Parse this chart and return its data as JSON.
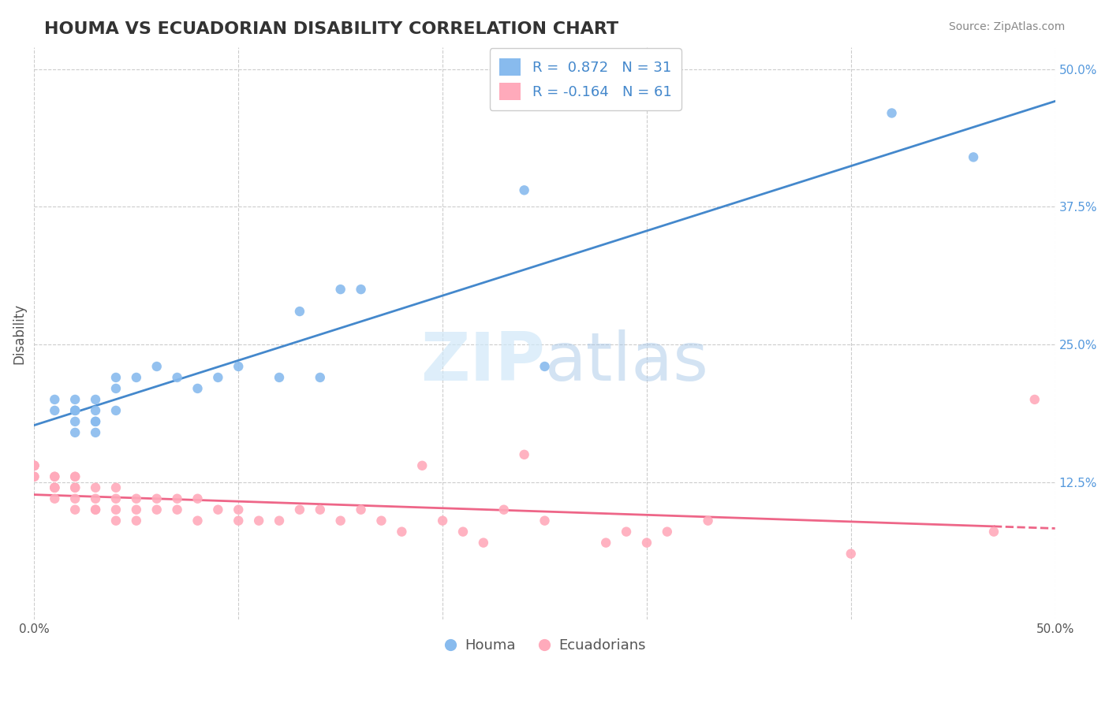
{
  "title": "HOUMA VS ECUADORIAN DISABILITY CORRELATION CHART",
  "source": "Source: ZipAtlas.com",
  "ylabel": "Disability",
  "xlabel": "",
  "xlim": [
    0.0,
    0.5
  ],
  "ylim": [
    0.0,
    0.52
  ],
  "houma_color": "#88bbee",
  "houma_line_color": "#4488cc",
  "ecuadorian_color": "#ffaabb",
  "ecuadorian_line_color": "#ee6688",
  "R_houma": 0.872,
  "N_houma": 31,
  "R_ecuadorian": -0.164,
  "N_ecuadorian": 61,
  "houma_x": [
    0.01,
    0.01,
    0.02,
    0.02,
    0.02,
    0.02,
    0.02,
    0.02,
    0.03,
    0.03,
    0.03,
    0.03,
    0.03,
    0.04,
    0.04,
    0.04,
    0.05,
    0.06,
    0.07,
    0.08,
    0.09,
    0.1,
    0.12,
    0.13,
    0.14,
    0.15,
    0.16,
    0.24,
    0.25,
    0.42,
    0.46
  ],
  "houma_y": [
    0.19,
    0.2,
    0.17,
    0.18,
    0.19,
    0.19,
    0.19,
    0.2,
    0.17,
    0.18,
    0.18,
    0.19,
    0.2,
    0.19,
    0.21,
    0.22,
    0.22,
    0.23,
    0.22,
    0.21,
    0.22,
    0.23,
    0.22,
    0.28,
    0.22,
    0.3,
    0.3,
    0.39,
    0.23,
    0.46,
    0.42
  ],
  "ecuadorian_x": [
    0.0,
    0.0,
    0.0,
    0.0,
    0.0,
    0.0,
    0.01,
    0.01,
    0.01,
    0.01,
    0.01,
    0.01,
    0.02,
    0.02,
    0.02,
    0.02,
    0.02,
    0.02,
    0.03,
    0.03,
    0.03,
    0.03,
    0.04,
    0.04,
    0.04,
    0.04,
    0.05,
    0.05,
    0.05,
    0.06,
    0.06,
    0.07,
    0.07,
    0.08,
    0.08,
    0.09,
    0.1,
    0.1,
    0.11,
    0.12,
    0.13,
    0.14,
    0.15,
    0.16,
    0.17,
    0.18,
    0.19,
    0.2,
    0.21,
    0.22,
    0.23,
    0.24,
    0.25,
    0.28,
    0.29,
    0.3,
    0.31,
    0.33,
    0.4,
    0.47,
    0.49
  ],
  "ecuadorian_y": [
    0.13,
    0.13,
    0.14,
    0.14,
    0.14,
    0.14,
    0.11,
    0.12,
    0.12,
    0.12,
    0.13,
    0.13,
    0.1,
    0.11,
    0.12,
    0.12,
    0.13,
    0.13,
    0.1,
    0.1,
    0.11,
    0.12,
    0.09,
    0.1,
    0.11,
    0.12,
    0.09,
    0.1,
    0.11,
    0.1,
    0.11,
    0.1,
    0.11,
    0.09,
    0.11,
    0.1,
    0.09,
    0.1,
    0.09,
    0.09,
    0.1,
    0.1,
    0.09,
    0.1,
    0.09,
    0.08,
    0.14,
    0.09,
    0.08,
    0.07,
    0.1,
    0.15,
    0.09,
    0.07,
    0.08,
    0.07,
    0.08,
    0.09,
    0.06,
    0.08,
    0.2
  ]
}
